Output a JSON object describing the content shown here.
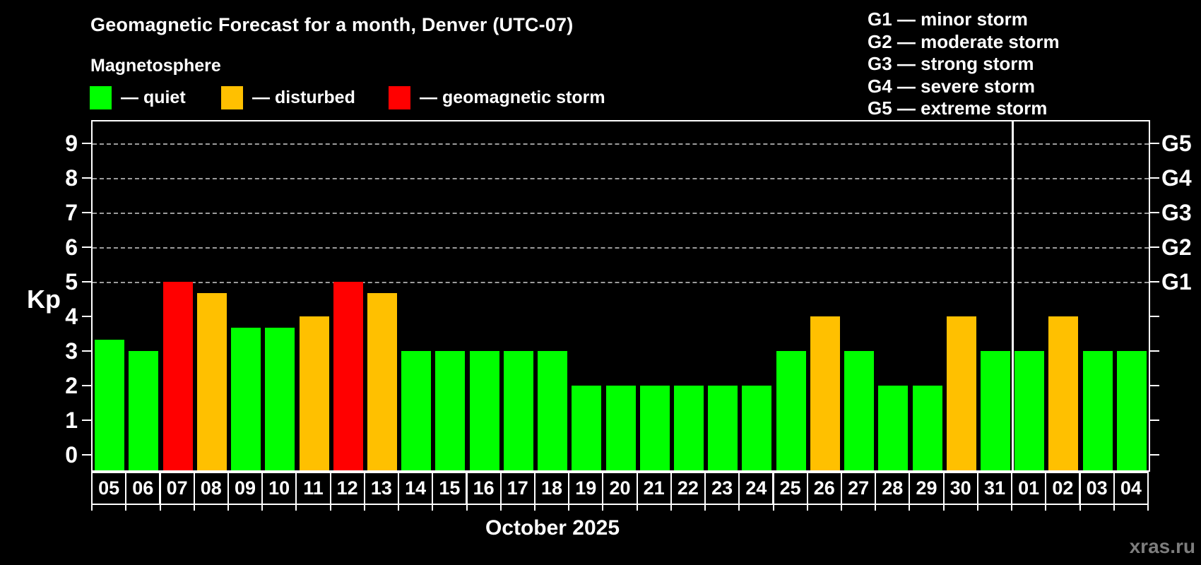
{
  "title": "Geomagnetic Forecast for a month, Denver (UTC-07)",
  "subtitle": "Magnetosphere",
  "legend": [
    {
      "key": "quiet",
      "label": "— quiet",
      "color": "#00ff00",
      "x": 127
    },
    {
      "key": "disturbed",
      "label": "— disturbed",
      "color": "#ffc000",
      "x": 313
    },
    {
      "key": "storm",
      "label": "— geomagnetic storm",
      "color": "#ff0000",
      "x": 550
    }
  ],
  "storm_scale": [
    {
      "code": "G1",
      "label": "G1 — minor storm",
      "kp": 5
    },
    {
      "code": "G2",
      "label": "G2 — moderate storm",
      "kp": 6
    },
    {
      "code": "G3",
      "label": "G3 — strong storm",
      "kp": 7
    },
    {
      "code": "G4",
      "label": "G4 — severe storm",
      "kp": 8
    },
    {
      "code": "G5",
      "label": "G5 — extreme storm",
      "kp": 9
    }
  ],
  "watermark": "xras.ru",
  "chart_data": {
    "type": "bar",
    "title": "Geomagnetic Forecast for a month, Denver (UTC-07)",
    "xlabel": "October 2025",
    "ylabel": "Kp",
    "ylim": [
      0,
      9
    ],
    "y_ticks": [
      0,
      1,
      2,
      3,
      4,
      5,
      6,
      7,
      8,
      9
    ],
    "gridlines_at": [
      5,
      6,
      7,
      8,
      9
    ],
    "grid_style": "dashed, only at storm levels G1–G5",
    "legend_position": "top-left",
    "right_axis_labels": [
      {
        "label": "G1",
        "kp": 5
      },
      {
        "label": "G2",
        "kp": 6
      },
      {
        "label": "G3",
        "kp": 7
      },
      {
        "label": "G4",
        "kp": 8
      },
      {
        "label": "G5",
        "kp": 9
      }
    ],
    "categories": [
      "05",
      "06",
      "07",
      "08",
      "09",
      "10",
      "11",
      "12",
      "13",
      "14",
      "15",
      "16",
      "17",
      "18",
      "19",
      "20",
      "21",
      "22",
      "23",
      "24",
      "25",
      "26",
      "27",
      "28",
      "29",
      "30",
      "31",
      "01",
      "02",
      "03",
      "04"
    ],
    "values": [
      3.33,
      3,
      5,
      4.67,
      3.67,
      3.67,
      4,
      5,
      4.67,
      3,
      3,
      3,
      3,
      3,
      2,
      2,
      2,
      2,
      2,
      2,
      3,
      4,
      3,
      2,
      2,
      4,
      3,
      3,
      4,
      3,
      3
    ],
    "statuses": [
      "quiet",
      "quiet",
      "storm",
      "disturbed",
      "quiet",
      "quiet",
      "disturbed",
      "storm",
      "disturbed",
      "quiet",
      "quiet",
      "quiet",
      "quiet",
      "quiet",
      "quiet",
      "quiet",
      "quiet",
      "quiet",
      "quiet",
      "quiet",
      "quiet",
      "disturbed",
      "quiet",
      "quiet",
      "quiet",
      "disturbed",
      "quiet",
      "quiet",
      "disturbed",
      "quiet",
      "quiet"
    ],
    "colors": {
      "quiet": "#00ff00",
      "disturbed": "#ffc000",
      "storm": "#ff0000"
    },
    "month_separator_after_index": 26
  }
}
